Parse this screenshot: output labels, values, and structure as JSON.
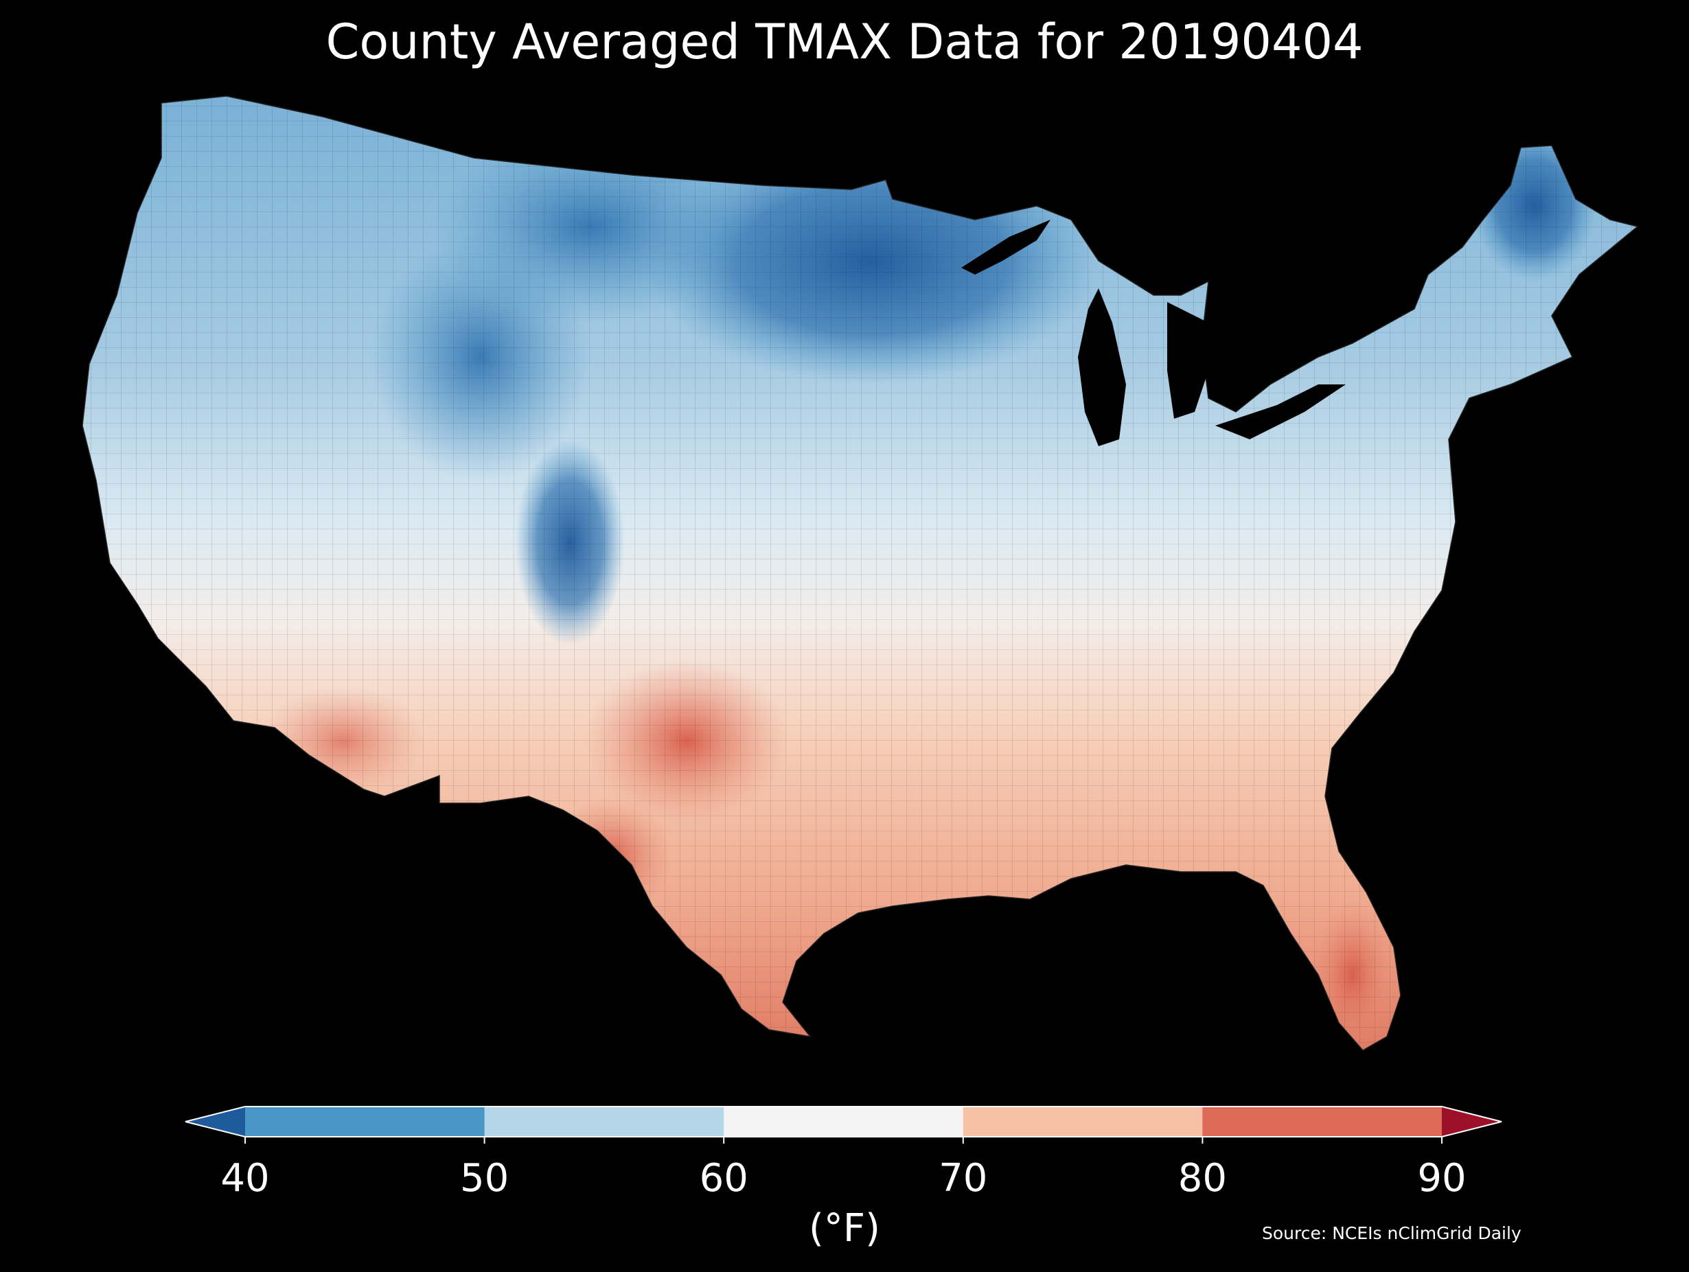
{
  "title": "County Averaged TMAX Data for 20190404",
  "colorbar": {
    "label": "(°F)",
    "ticks": [
      "40",
      "50",
      "60",
      "70",
      "80",
      "90"
    ],
    "bins": [
      {
        "range": "<40",
        "color": "#1f5a9c"
      },
      {
        "range": "40-50",
        "color": "#4a96c7"
      },
      {
        "range": "50-60",
        "color": "#b4d6e8"
      },
      {
        "range": "60-70",
        "color": "#f4f4f4"
      },
      {
        "range": "70-80",
        "color": "#f8c0a4"
      },
      {
        "range": "80-90",
        "color": "#dc6a55"
      },
      {
        "range": ">90",
        "color": "#9c1028"
      }
    ]
  },
  "source": "Source: NCEIs nClimGrid Daily",
  "map": {
    "background": "#000000",
    "region": "Contiguous United States, county-averaged maximum temperature",
    "pattern": "cold (40-50°F) across northern plains, upper midwest, Maine; warm (70-90°F) across Texas, Gulf coast, southern Florida, southwest desert"
  }
}
